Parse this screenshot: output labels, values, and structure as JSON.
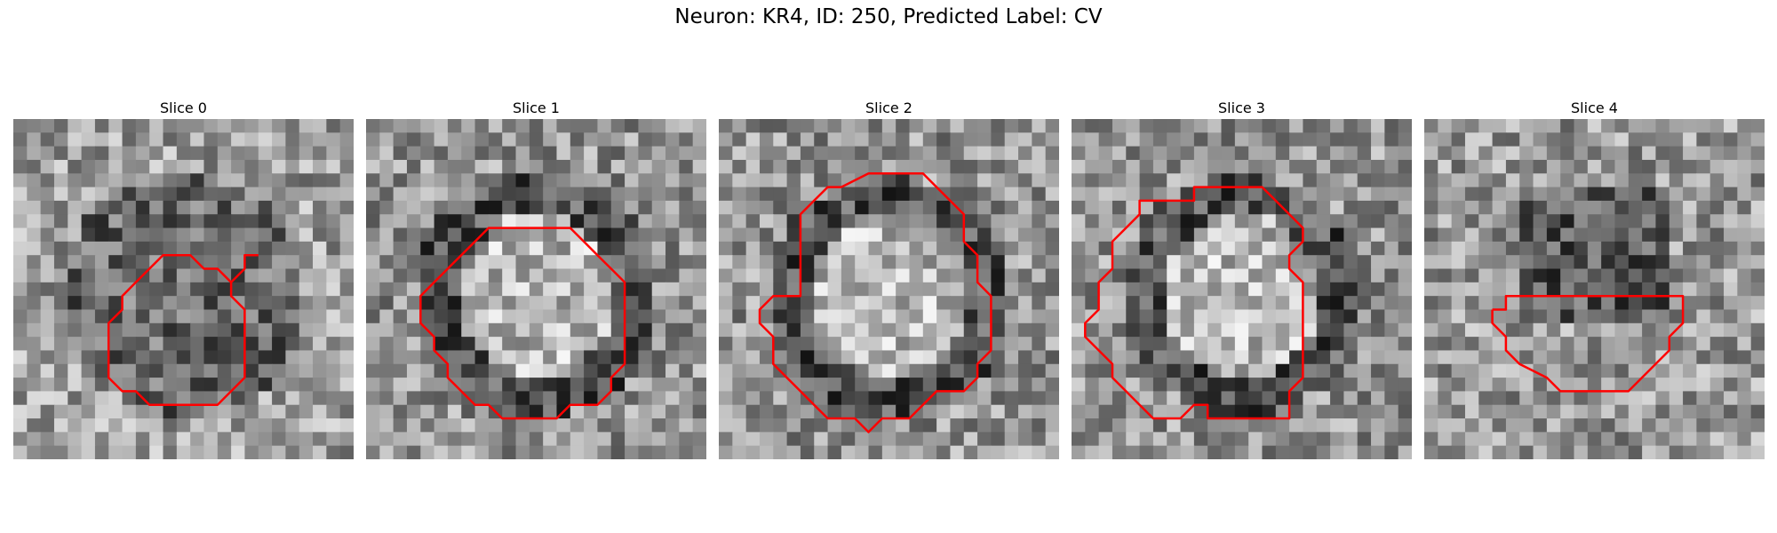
{
  "figure": {
    "title": "Neuron: KR4, ID: 250, Predicted Label: CV"
  },
  "panels": [
    {
      "title": "Slice 0",
      "contour_color": "#ff0000",
      "contour": [
        [
          17.5,
          9.5
        ],
        [
          16.5,
          9.5
        ],
        [
          16.5,
          10.5
        ],
        [
          15.5,
          11.5
        ],
        [
          15.5,
          12.5
        ],
        [
          16.5,
          13.5
        ],
        [
          16.5,
          18.5
        ],
        [
          14.5,
          20.5
        ],
        [
          14.5,
          20.5
        ],
        [
          11.5,
          20.5
        ],
        [
          9.5,
          20.5
        ],
        [
          9.5,
          20.5
        ],
        [
          8.5,
          19.5
        ],
        [
          7.5,
          19.5
        ],
        [
          6.5,
          18.5
        ],
        [
          6.5,
          14.5
        ],
        [
          7.5,
          13.5
        ],
        [
          7.5,
          12.5
        ],
        [
          8.5,
          11.5
        ],
        [
          9.5,
          10.5
        ],
        [
          9.5,
          10.5
        ],
        [
          10.5,
          9.5
        ],
        [
          12.5,
          9.5
        ],
        [
          13.5,
          10.5
        ],
        [
          14.5,
          10.5
        ],
        [
          15.5,
          11.5
        ]
      ]
    },
    {
      "title": "Slice 1",
      "contour_color": "#ff0000",
      "contour": [
        [
          4.5,
          11.5
        ],
        [
          5.5,
          10.5
        ],
        [
          6.5,
          9.5
        ],
        [
          7.5,
          8.5
        ],
        [
          8.5,
          7.5
        ],
        [
          10.5,
          7.5
        ],
        [
          13.5,
          7.5
        ],
        [
          14.5,
          7.5
        ],
        [
          15.5,
          8.5
        ],
        [
          16.5,
          9.5
        ],
        [
          17.5,
          10.5
        ],
        [
          18.5,
          11.5
        ],
        [
          18.5,
          17.5
        ],
        [
          17.5,
          18.5
        ],
        [
          17.5,
          19.5
        ],
        [
          16.5,
          20.5
        ],
        [
          14.5,
          20.5
        ],
        [
          13.5,
          21.5
        ],
        [
          10.5,
          21.5
        ],
        [
          9.5,
          21.5
        ],
        [
          8.5,
          20.5
        ],
        [
          7.5,
          20.5
        ],
        [
          5.5,
          18.5
        ],
        [
          5.5,
          17.5
        ],
        [
          4.5,
          16.5
        ],
        [
          4.5,
          15.5
        ],
        [
          3.5,
          14.5
        ],
        [
          3.5,
          12.5
        ],
        [
          4.5,
          11.5
        ]
      ]
    },
    {
      "title": "Slice 2",
      "contour_color": "#ff0000",
      "contour": [
        [
          8.5,
          4.5
        ],
        [
          10.5,
          3.5
        ],
        [
          12.5,
          3.5
        ],
        [
          14.5,
          3.5
        ],
        [
          15.5,
          4.5
        ],
        [
          16.5,
          5.5
        ],
        [
          17.5,
          6.5
        ],
        [
          17.5,
          8.5
        ],
        [
          18.5,
          9.5
        ],
        [
          18.5,
          11.5
        ],
        [
          19.5,
          12.5
        ],
        [
          19.5,
          14.5
        ],
        [
          19.5,
          16.5
        ],
        [
          18.5,
          17.5
        ],
        [
          18.5,
          18.5
        ],
        [
          17.5,
          19.5
        ],
        [
          15.5,
          19.5
        ],
        [
          14.5,
          20.5
        ],
        [
          13.5,
          21.5
        ],
        [
          11.5,
          21.5
        ],
        [
          10.5,
          22.5
        ],
        [
          9.5,
          21.5
        ],
        [
          7.5,
          21.5
        ],
        [
          6.5,
          20.5
        ],
        [
          5.5,
          19.5
        ],
        [
          5.5,
          19.5
        ],
        [
          4.5,
          18.5
        ],
        [
          3.5,
          17.5
        ],
        [
          3.5,
          16.5
        ],
        [
          3.5,
          15.5
        ],
        [
          2.5,
          14.5
        ],
        [
          2.5,
          13.5
        ],
        [
          3.5,
          12.5
        ],
        [
          4.5,
          12.5
        ],
        [
          5.5,
          12.5
        ],
        [
          5.5,
          9.5
        ],
        [
          5.5,
          6.5
        ],
        [
          6.5,
          5.5
        ],
        [
          7.5,
          4.5
        ],
        [
          8.5,
          4.5
        ]
      ]
    },
    {
      "title": "Slice 3",
      "contour_color": "#ff0000",
      "contour": [
        [
          7.5,
          5.5
        ],
        [
          8.5,
          5.5
        ],
        [
          8.5,
          4.5
        ],
        [
          11.5,
          4.5
        ],
        [
          13.5,
          4.5
        ],
        [
          14.5,
          5.5
        ],
        [
          15.5,
          6.5
        ],
        [
          15.5,
          6.5
        ],
        [
          16.5,
          7.5
        ],
        [
          16.5,
          8.5
        ],
        [
          15.5,
          9.5
        ],
        [
          15.5,
          10.5
        ],
        [
          16.5,
          11.5
        ],
        [
          16.5,
          12.5
        ],
        [
          16.5,
          15.5
        ],
        [
          16.5,
          17.5
        ],
        [
          16.5,
          18.5
        ],
        [
          15.5,
          19.5
        ],
        [
          15.5,
          20.5
        ],
        [
          15.5,
          21.5
        ],
        [
          14.5,
          21.5
        ],
        [
          13.5,
          21.5
        ],
        [
          9.5,
          21.5
        ],
        [
          9.5,
          20.5
        ],
        [
          8.5,
          20.5
        ],
        [
          7.5,
          21.5
        ],
        [
          7.5,
          21.5
        ],
        [
          6.5,
          21.5
        ],
        [
          5.5,
          21.5
        ],
        [
          4.5,
          20.5
        ],
        [
          3.5,
          19.5
        ],
        [
          2.5,
          18.5
        ],
        [
          2.5,
          17.5
        ],
        [
          1.5,
          16.5
        ],
        [
          0.5,
          15.5
        ],
        [
          0.5,
          14.5
        ],
        [
          1.5,
          13.5
        ],
        [
          1.5,
          11.5
        ],
        [
          2.5,
          10.5
        ],
        [
          2.5,
          8.5
        ],
        [
          3.5,
          7.5
        ],
        [
          4.5,
          6.5
        ],
        [
          4.5,
          5.5
        ],
        [
          6.5,
          5.5
        ],
        [
          7.5,
          5.5
        ]
      ]
    },
    {
      "title": "Slice 4",
      "contour_color": "#ff0000",
      "contour": [
        [
          4.5,
          13.5
        ],
        [
          4.5,
          14.5
        ],
        [
          5.5,
          15.5
        ],
        [
          5.5,
          16.5
        ],
        [
          6.5,
          17.5
        ],
        [
          8.5,
          18.5
        ],
        [
          9.5,
          19.5
        ],
        [
          11.5,
          19.5
        ],
        [
          14.5,
          19.5
        ],
        [
          14.5,
          19.5
        ],
        [
          16.5,
          17.5
        ],
        [
          17.5,
          16.5
        ],
        [
          17.5,
          15.5
        ],
        [
          18.5,
          14.5
        ],
        [
          18.5,
          13.5
        ],
        [
          18.5,
          12.5
        ],
        [
          17.5,
          12.5
        ],
        [
          13.5,
          12.5
        ],
        [
          9.5,
          12.5
        ],
        [
          6.5,
          12.5
        ],
        [
          5.5,
          12.5
        ],
        [
          5.5,
          13.5
        ],
        [
          4.5,
          13.5
        ]
      ]
    }
  ]
}
